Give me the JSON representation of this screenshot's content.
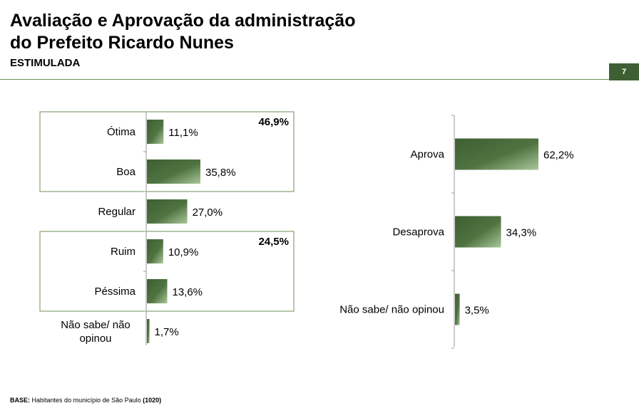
{
  "header": {
    "title_line1": "Avaliação e Aprovação da administração",
    "title_line2": "do Prefeito Ricardo Nunes",
    "subtitle": "ESTIMULADA",
    "page_number": "7"
  },
  "footer": {
    "base_label": "BASE:",
    "base_text": "Habitantes do município de São Paulo",
    "base_n": "(1020)"
  },
  "colors": {
    "bar_dark": "#3e5f33",
    "bar_light": "#a9c79a",
    "frame": "#6e8f55"
  },
  "chart_data": [
    {
      "type": "bar",
      "orientation": "horizontal",
      "categories": [
        "Ótima",
        "Boa",
        "Regular",
        "Ruim",
        "Péssima",
        "Não sabe/ não opinou"
      ],
      "values": [
        11.1,
        35.8,
        27.0,
        10.9,
        13.6,
        1.7
      ],
      "value_labels": [
        "11,1%",
        "35,8%",
        "27,0%",
        "10,9%",
        "13,6%",
        "1,7%"
      ],
      "groups": [
        {
          "categories": [
            "Ótima",
            "Boa"
          ],
          "total_label": "46,9%"
        },
        {
          "categories": [
            "Ruim",
            "Péssima"
          ],
          "total_label": "24,5%"
        }
      ]
    },
    {
      "type": "bar",
      "orientation": "horizontal",
      "categories": [
        "Aprova",
        "Desaprova",
        "Não sabe/ não opinou"
      ],
      "values": [
        62.2,
        34.3,
        3.5
      ],
      "value_labels": [
        "62,2%",
        "34,3%",
        "3,5%"
      ]
    }
  ]
}
